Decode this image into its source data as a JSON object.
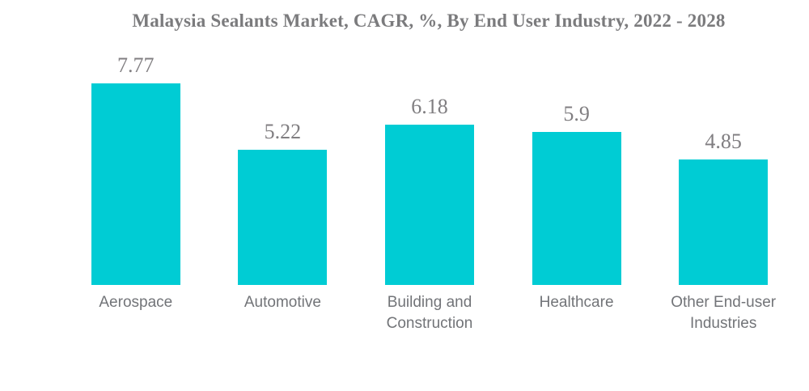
{
  "title": "Malaysia Sealants Market, CAGR, %, By End User Industry, 2022 - 2028",
  "colors": {
    "bar": "#00ccd4",
    "title_text": "#7b7b7d",
    "value_text": "#807e81",
    "category_text": "#727478",
    "background": "#ffffff"
  },
  "chart_data": {
    "type": "bar",
    "title": "Malaysia Sealants Market, CAGR, %, By End User Industry, 2022 - 2028",
    "categories": [
      "Aerospace",
      "Automotive",
      "Building and Construction",
      "Healthcare",
      "Other End-user Industries"
    ],
    "values": [
      7.77,
      5.22,
      6.18,
      5.9,
      4.85
    ],
    "value_labels": [
      "7.77",
      "5.22",
      "6.18",
      "5.9",
      "4.85"
    ],
    "xlabel": "",
    "ylabel": "",
    "ylim": [
      0,
      9
    ],
    "grid": false,
    "legend": false,
    "axis_lines": false,
    "bar_color": "#00ccd4",
    "orientation": "vertical"
  }
}
